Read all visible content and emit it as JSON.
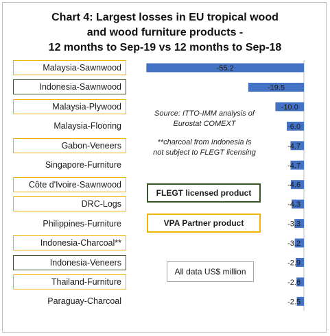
{
  "title": {
    "line1": "Chart 4: Largest losses in EU tropical wood",
    "line2": "and wood furniture products -",
    "line3": "12 months to Sep-19 vs 12 months to Sep-18"
  },
  "notes": {
    "source_line1": "Source: ITTO-IMM analysis of",
    "source_line2": "Eurostat COMEXT",
    "charcoal_line1": "**charcoal from Indonesia is",
    "charcoal_line2": "not subject to FLEGT licensing"
  },
  "legend": {
    "flegt_label": "FLEGT licensed product",
    "vpa_label": "VPA Partner product",
    "units_label": "All data US$ million"
  },
  "colors": {
    "bar": "#4472c4",
    "flegt_border": "#375623",
    "vpa_border": "#f0b400"
  },
  "chart_data": {
    "type": "bar",
    "orientation": "horizontal",
    "categories": [
      "Malaysia-Sawnwood",
      "Indonesia-Sawnwood",
      "Malaysia-Plywood",
      "Malaysia-Flooring",
      "Gabon-Veneers",
      "Singapore-Furniture",
      "Côte d'Ivoire-Sawnwood",
      "DRC-Logs",
      "Philippines-Furniture",
      "Indonesia-Charcoal**",
      "Indonesia-Veneers",
      "Thailand-Furniture",
      "Paraguay-Charcoal"
    ],
    "values": [
      -55.2,
      -19.5,
      -10.0,
      -6.0,
      -4.7,
      -4.7,
      -4.6,
      -4.3,
      -3.3,
      -3.2,
      -2.9,
      -2.6,
      -2.5
    ],
    "value_labels": [
      "-55.2",
      "-19.5",
      "-10.0",
      "-6.0",
      "-4.7",
      "-4.7",
      "-4.6",
      "-4.3",
      "-3.3",
      "-3.2",
      "-2.9",
      "-2.6",
      "-2.5"
    ],
    "category_status": [
      "vpa",
      "flegt",
      "vpa",
      "none",
      "vpa",
      "none",
      "vpa",
      "vpa",
      "none",
      "vpa",
      "flegt",
      "vpa",
      "none"
    ],
    "xlim": [
      -56,
      0
    ],
    "grid": false,
    "legend": "center"
  }
}
